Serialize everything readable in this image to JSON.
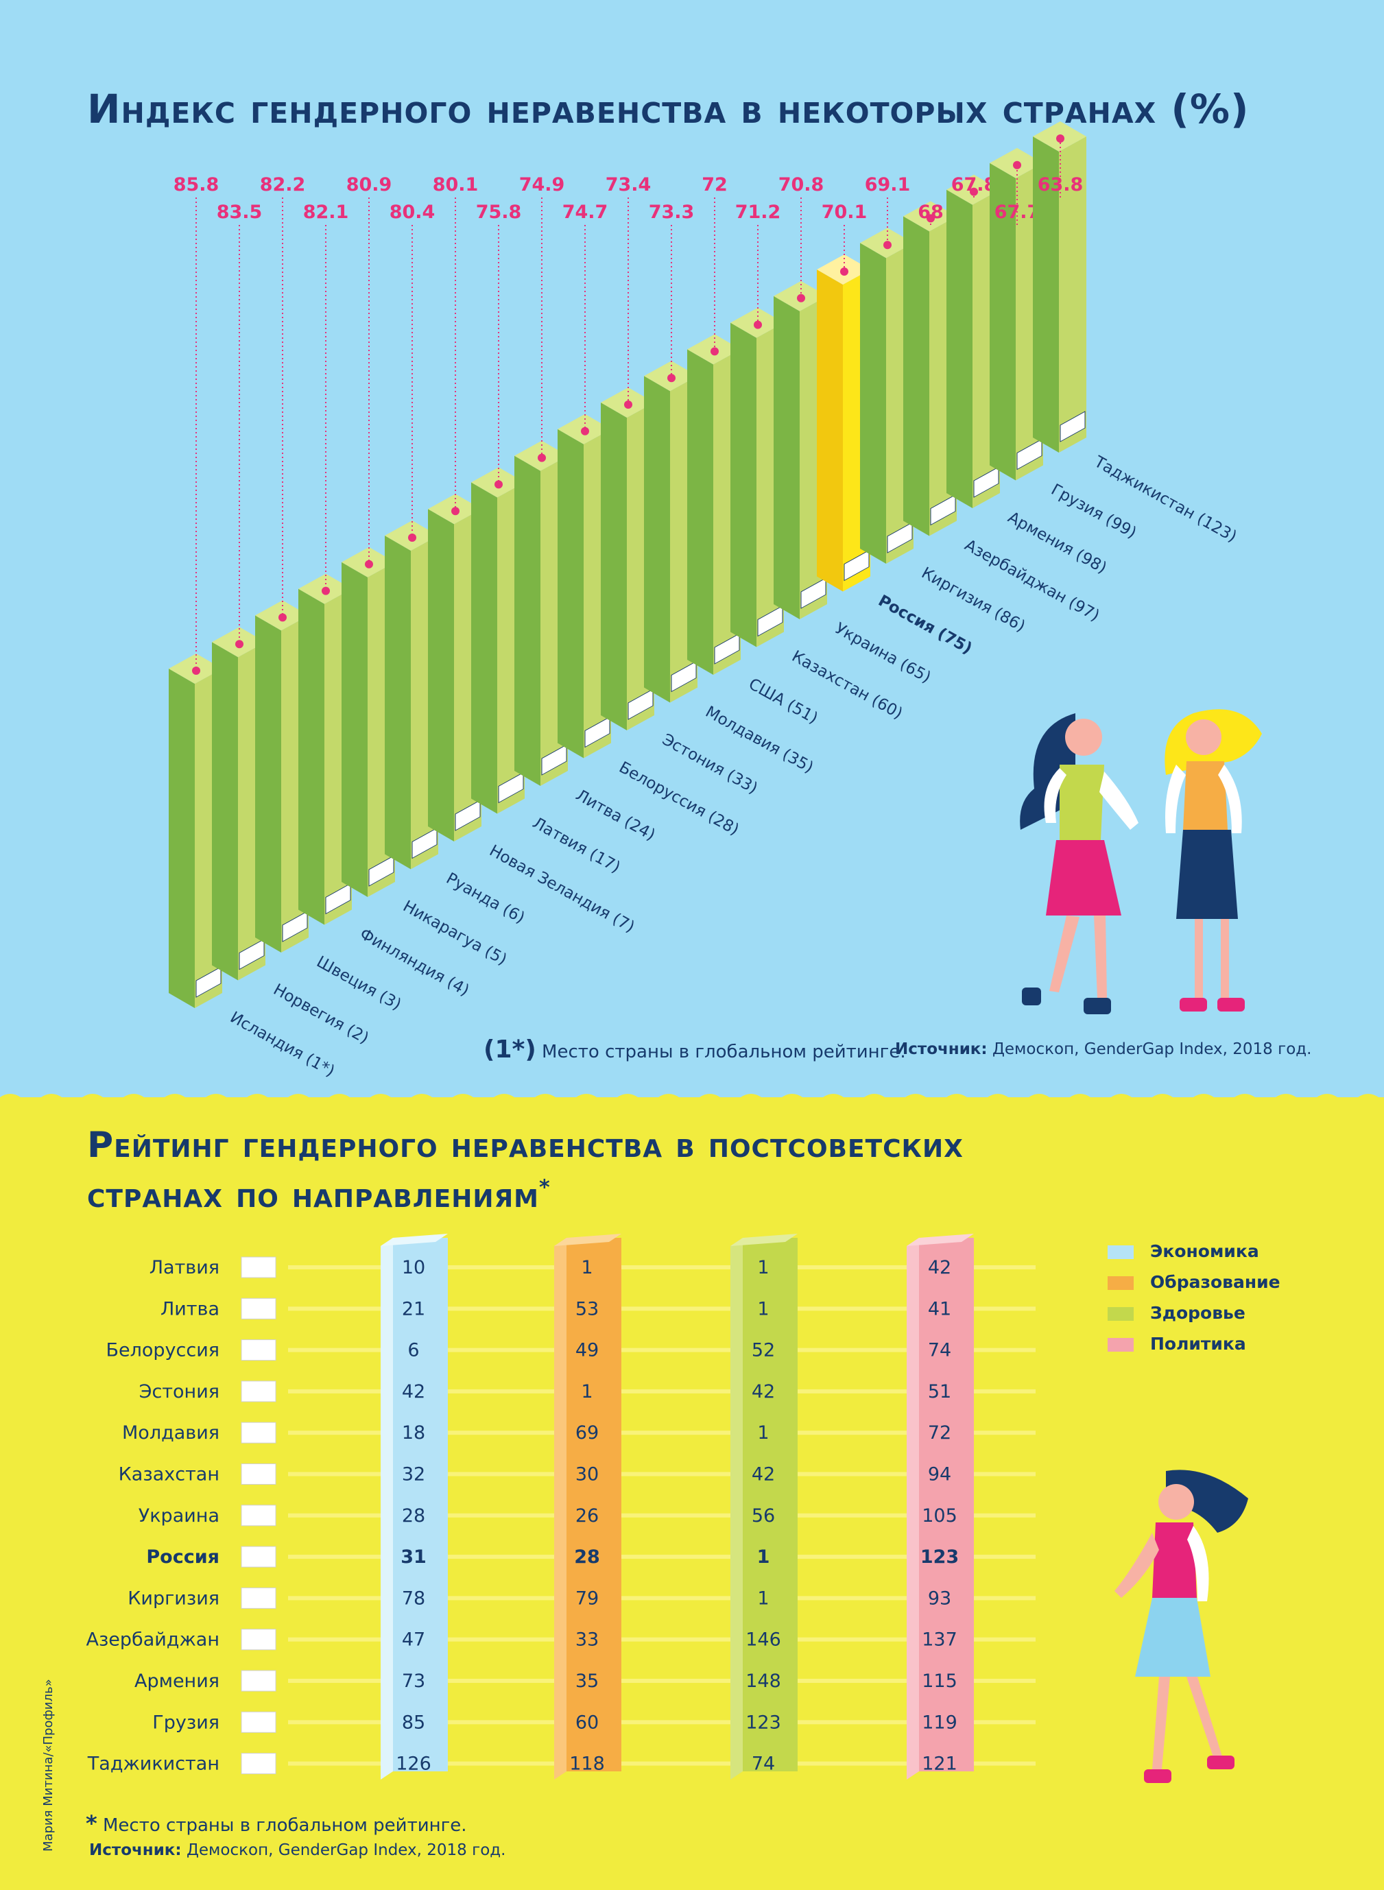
{
  "chart1": {
    "title": "Индекс гендерного неравенства в некоторых странах (%)",
    "footnote_mark": "(1*)",
    "footnote_text": "Место страны в глобальном рейтинге.",
    "source_label": "Источник:",
    "source_text": "Демоскоп, GenderGap Index, 2018 год."
  },
  "chart2": {
    "title_line1": "Рейтинг гендерного неравенства в постсоветских",
    "title_line2": "странах по направлениям",
    "title_asterisk": "*",
    "footnote_mark": "*",
    "footnote_text": "Место страны в глобальном рейтинге.",
    "source_label": "Источник:",
    "source_text": "Демоскоп, GenderGap Index, 2018 год.",
    "legend": [
      {
        "label": "Экономика",
        "color": "#b5e3f7"
      },
      {
        "label": "Образование",
        "color": "#f6ad45"
      },
      {
        "label": "Здоровье",
        "color": "#c3d84c"
      },
      {
        "label": "Политика",
        "color": "#f4a3ad"
      }
    ]
  },
  "credit": "Мария Митина/«Профиль»",
  "colors": {
    "bar_front": "#c3d96a",
    "bar_side": "#7cb545",
    "bar_top": "#d9e98c",
    "russia": "#fde619",
    "value": "#e8317a",
    "navy": "#173a6c"
  },
  "chart_data": [
    {
      "type": "bar",
      "title": "Индекс гендерного неравенства в некоторых странах (%)",
      "xlabel": "",
      "ylabel": "",
      "categories": [
        "Исландия (1*)",
        "Норвегия (2)",
        "Швеция (3)",
        "Финляндия (4)",
        "Никарагуа (5)",
        "Руанда (6)",
        "Новая Зеландия (7)",
        "Латвия (17)",
        "Литва (24)",
        "Белоруссия (28)",
        "Эстония (33)",
        "Молдавия (35)",
        "США (51)",
        "Казахстан (60)",
        "Украина (65)",
        "Россия (75)",
        "Киргизия (86)",
        "Азербайджан (97)",
        "Армения (98)",
        "Грузия (99)",
        "Таджикистан (123)"
      ],
      "values": [
        85.8,
        83.5,
        82.2,
        82.1,
        80.9,
        80.4,
        80.1,
        75.8,
        74.9,
        74.7,
        73.4,
        73.3,
        72,
        71.2,
        70.8,
        70.1,
        69.1,
        68,
        67.8,
        67.7,
        63.8
      ],
      "highlight": "Россия (75)"
    },
    {
      "type": "table",
      "title": "Рейтинг гендерного неравенства в постсоветских странах по направлениям",
      "columns": [
        "Экономика",
        "Образование",
        "Здоровье",
        "Политика"
      ],
      "rows": [
        {
          "country": "Латвия",
          "values": [
            10,
            1,
            1,
            42
          ]
        },
        {
          "country": "Литва",
          "values": [
            21,
            53,
            1,
            41
          ]
        },
        {
          "country": "Белоруссия",
          "values": [
            6,
            49,
            52,
            74
          ]
        },
        {
          "country": "Эстония",
          "values": [
            42,
            1,
            42,
            51
          ]
        },
        {
          "country": "Молдавия",
          "values": [
            18,
            69,
            1,
            72
          ]
        },
        {
          "country": "Казахстан",
          "values": [
            32,
            30,
            42,
            94
          ]
        },
        {
          "country": "Украина",
          "values": [
            28,
            26,
            56,
            105
          ]
        },
        {
          "country": "Россия",
          "values": [
            31,
            28,
            1,
            123
          ],
          "bold": true
        },
        {
          "country": "Киргизия",
          "values": [
            78,
            79,
            1,
            93
          ]
        },
        {
          "country": "Азербайджан",
          "values": [
            47,
            33,
            146,
            137
          ]
        },
        {
          "country": "Армения",
          "values": [
            73,
            35,
            148,
            115
          ]
        },
        {
          "country": "Грузия",
          "values": [
            85,
            60,
            123,
            119
          ]
        },
        {
          "country": "Таджикистан",
          "values": [
            126,
            118,
            74,
            121
          ]
        }
      ]
    }
  ]
}
